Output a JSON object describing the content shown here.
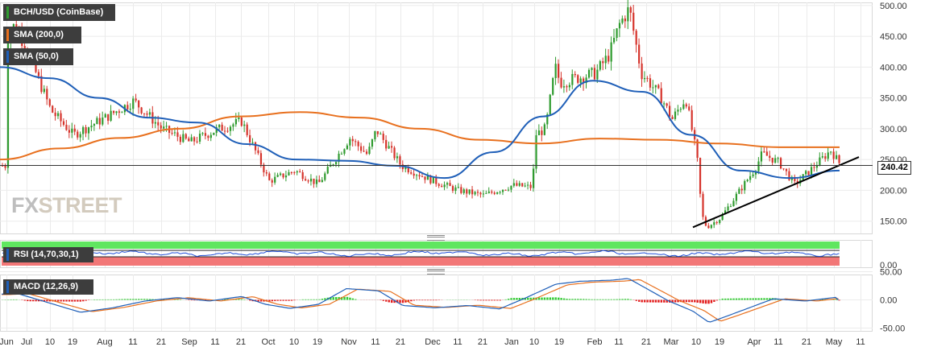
{
  "chart_data": {
    "type": "candlestick",
    "symbol": "BCH/USD (CoinBase)",
    "overlays": [
      {
        "name": "SMA (200,0)",
        "color": "#e8701e"
      },
      {
        "name": "SMA (50,0)",
        "color": "#1f5fb8"
      }
    ],
    "current_price_label": "240.42",
    "y_ticks": [
      "500.00",
      "450.00",
      "400.00",
      "350.00",
      "300.00",
      "250.00",
      "200.00",
      "150.00"
    ],
    "ylim": [
      130,
      505
    ],
    "x_tick_labels": [
      "Jun",
      "Jul",
      "10",
      "19",
      "Aug",
      "11",
      "21",
      "Sep",
      "11",
      "21",
      "Oct",
      "10",
      "19",
      "Nov",
      "11",
      "21",
      "Dec",
      "11",
      "21",
      "Jan",
      "10",
      "19",
      "Feb",
      "11",
      "21",
      "Mar",
      "10",
      "19",
      "Apr",
      "11",
      "21",
      "May",
      "11"
    ],
    "price_keypoints": [
      [
        "Jun",
        450
      ],
      [
        "Jul",
        425
      ],
      [
        "10",
        330
      ],
      [
        "19",
        290
      ],
      [
        "Aug",
        318
      ],
      [
        "11",
        345
      ],
      [
        "21",
        300
      ],
      [
        "Sep",
        278
      ],
      [
        "11",
        298
      ],
      [
        "21",
        312
      ],
      [
        "Oct",
        215
      ],
      [
        "10",
        232
      ],
      [
        "19",
        210
      ],
      [
        "Nov",
        285
      ],
      [
        "11",
        298
      ],
      [
        "21",
        240
      ],
      [
        "Dec",
        215
      ],
      [
        "11",
        200
      ],
      [
        "21",
        192
      ],
      [
        "Jan",
        208
      ],
      [
        "10",
        290
      ],
      [
        "19",
        375
      ],
      [
        "Feb",
        390
      ],
      [
        "11",
        470
      ],
      [
        "21",
        380
      ],
      [
        "Mar",
        315
      ],
      [
        "10",
        255
      ],
      [
        "19",
        155
      ],
      [
        "Apr",
        235
      ],
      [
        "11",
        245
      ],
      [
        "21",
        228
      ],
      [
        "May",
        255
      ]
    ],
    "sma200_keypoints": [
      250,
      268,
      285,
      300,
      320,
      327,
      318,
      300,
      282,
      276,
      284,
      282,
      276,
      270,
      270
    ],
    "sma50_keypoints": [
      400,
      382,
      350,
      318,
      310,
      275,
      250,
      248,
      240,
      220,
      262,
      320,
      378,
      360,
      290,
      232,
      220,
      232
    ],
    "trendline": {
      "from": [
        "19",
        140
      ],
      "to": [
        "May",
        252
      ]
    },
    "hline": 240.42,
    "rsi": {
      "label": "RSI (14,70,30,1)",
      "y_ticks": [
        "0.00"
      ],
      "overbought_color": "#5fe65f",
      "oversold_color": "#f27777"
    },
    "macd": {
      "label": "MACD (12,26,9)",
      "y_ticks": [
        "50.00",
        "0.00",
        "-50.00"
      ],
      "ylim": [
        -55,
        45
      ],
      "hist_pos_color": "#33cc33",
      "hist_neg_color": "#e31a1a",
      "macd_color": "#1f5fb8",
      "signal_color": "#e8701e"
    },
    "colors": {
      "up": "#2f9b2f",
      "down": "#d6342c"
    }
  },
  "watermark": {
    "fx": "FX",
    "rest": "STREET"
  }
}
